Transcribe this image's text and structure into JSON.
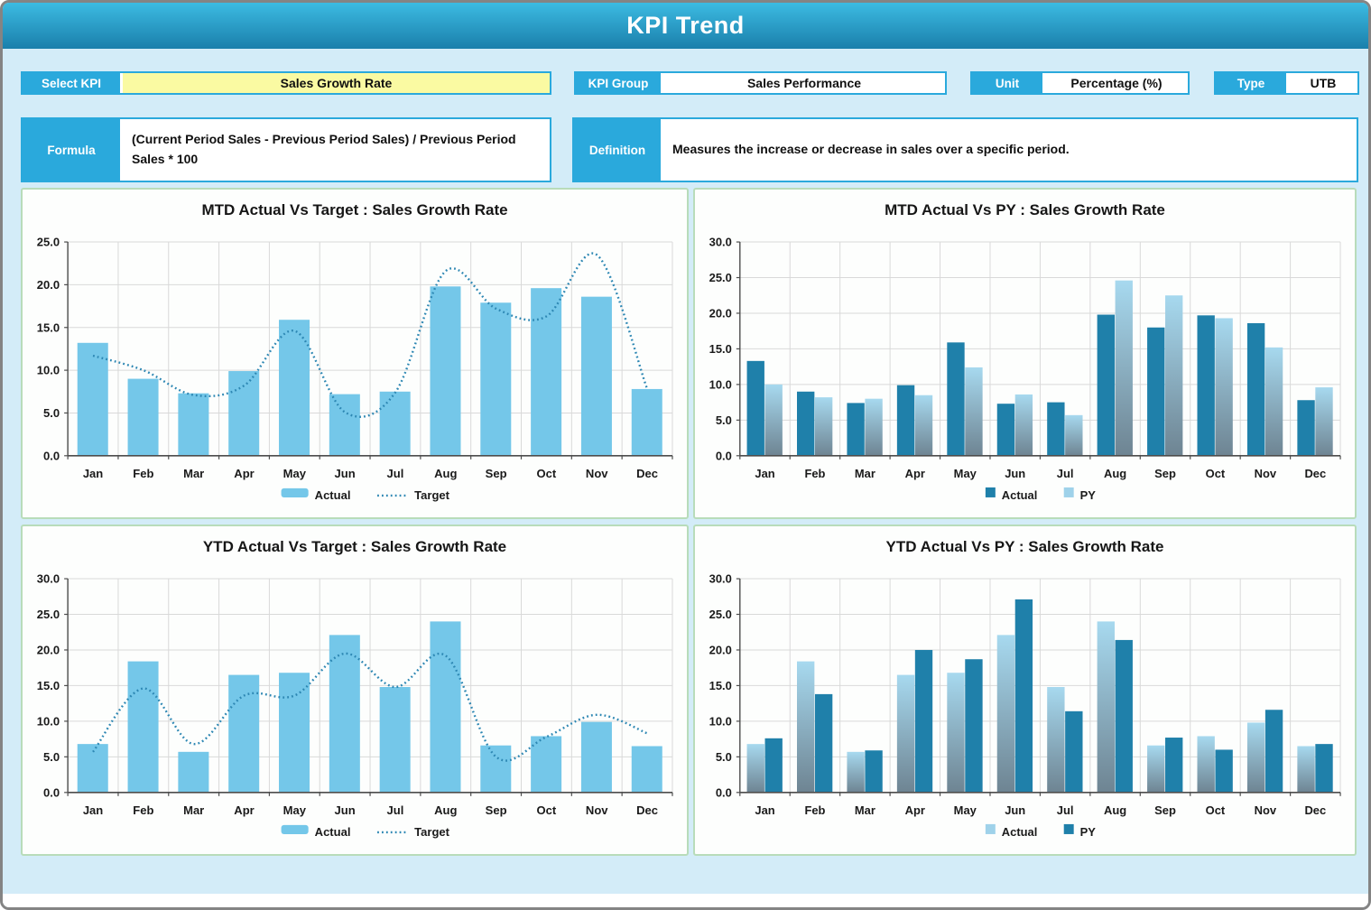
{
  "header": {
    "title": "KPI Trend"
  },
  "fields": {
    "select_kpi": {
      "label": "Select KPI",
      "value": "Sales Growth Rate"
    },
    "kpi_group": {
      "label": "KPI Group",
      "value": "Sales Performance"
    },
    "unit": {
      "label": "Unit",
      "value": "Percentage (%)"
    },
    "type": {
      "label": "Type",
      "value": "UTB"
    },
    "formula": {
      "label": "Formula",
      "value": "(Current Period Sales - Previous Period Sales) / Previous Period Sales * 100"
    },
    "definition": {
      "label": "Definition",
      "value": "Measures the increase or decrease in sales over a specific period."
    }
  },
  "colors": {
    "accent_cyan": "#2aa9dc",
    "header_gradient_top": "#3cbbe2",
    "header_gradient_bottom": "#1a7fab",
    "page_bg": "#d3ecf8",
    "yellow_field": "#fafaa2",
    "panel_border": "#b8dcba",
    "panel_bg": "#fdfefd",
    "bar_light": "#74c7e9",
    "bar_dark": "#1f80aa",
    "gradient_top": "#a7d9ef",
    "gradient_bottom": "#6e8492",
    "legend_light": "#9fd2ea",
    "line_dotted": "#2d87b3",
    "grid": "#d9d9d9",
    "axis": "#4d4d4d",
    "text_dark": "#1a1a1a",
    "border_gray": "#848484"
  },
  "chart_data": [
    {
      "type": "bar",
      "title": "MTD Actual Vs Target : Sales Growth Rate",
      "categories": [
        "Jan",
        "Feb",
        "Mar",
        "Apr",
        "May",
        "Jun",
        "Jul",
        "Aug",
        "Sep",
        "Oct",
        "Nov",
        "Dec"
      ],
      "ylim": [
        0,
        25
      ],
      "ystep": 5,
      "grid": true,
      "legend_position": "bottom",
      "series": [
        {
          "name": "Actual",
          "kind": "bar",
          "style": "light",
          "values": [
            13.2,
            9.0,
            7.3,
            9.9,
            15.9,
            7.2,
            7.5,
            19.8,
            17.9,
            19.6,
            18.6,
            7.8
          ]
        },
        {
          "name": "Target",
          "kind": "line",
          "style": "dotted",
          "values": [
            11.7,
            10.0,
            7.1,
            8.2,
            14.6,
            5.1,
            7.4,
            21.6,
            17.2,
            16.3,
            23.5,
            7.8
          ]
        }
      ]
    },
    {
      "type": "bar",
      "title": "MTD Actual Vs PY : Sales Growth Rate",
      "categories": [
        "Jan",
        "Feb",
        "Mar",
        "Apr",
        "May",
        "Jun",
        "Jul",
        "Aug",
        "Sep",
        "Oct",
        "Nov",
        "Dec"
      ],
      "ylim": [
        0,
        30
      ],
      "ystep": 5,
      "grid": true,
      "legend_position": "bottom",
      "series": [
        {
          "name": "Actual",
          "kind": "bar",
          "style": "dark",
          "values": [
            13.3,
            9.0,
            7.4,
            9.9,
            15.9,
            7.3,
            7.5,
            19.8,
            18.0,
            19.7,
            18.6,
            7.8
          ]
        },
        {
          "name": "PY",
          "kind": "bar",
          "style": "gradient",
          "values": [
            10.0,
            8.2,
            8.0,
            8.5,
            12.4,
            8.6,
            5.7,
            24.6,
            22.5,
            19.3,
            15.2,
            9.6
          ]
        }
      ]
    },
    {
      "type": "bar",
      "title": "YTD Actual Vs Target : Sales Growth Rate",
      "categories": [
        "Jan",
        "Feb",
        "Mar",
        "Apr",
        "May",
        "Jun",
        "Jul",
        "Aug",
        "Sep",
        "Oct",
        "Nov",
        "Dec"
      ],
      "ylim": [
        0,
        30
      ],
      "ystep": 5,
      "grid": true,
      "legend_position": "bottom",
      "series": [
        {
          "name": "Actual",
          "kind": "bar",
          "style": "light",
          "values": [
            6.8,
            18.4,
            5.7,
            16.5,
            16.8,
            22.1,
            14.8,
            24.0,
            6.6,
            7.9,
            9.9,
            6.5
          ]
        },
        {
          "name": "Target",
          "kind": "line",
          "style": "dotted",
          "values": [
            5.7,
            14.6,
            6.8,
            13.6,
            13.6,
            19.5,
            14.8,
            19.2,
            5.0,
            7.8,
            10.9,
            8.3
          ]
        }
      ]
    },
    {
      "type": "bar",
      "title": "YTD Actual Vs PY : Sales Growth Rate",
      "categories": [
        "Jan",
        "Feb",
        "Mar",
        "Apr",
        "May",
        "Jun",
        "Jul",
        "Aug",
        "Sep",
        "Oct",
        "Nov",
        "Dec"
      ],
      "ylim": [
        0,
        30
      ],
      "ystep": 5,
      "grid": true,
      "legend_position": "bottom",
      "series": [
        {
          "name": "Actual",
          "kind": "bar",
          "style": "gradient",
          "values": [
            6.8,
            18.4,
            5.7,
            16.5,
            16.8,
            22.1,
            14.8,
            24.0,
            6.6,
            7.9,
            9.8,
            6.5
          ]
        },
        {
          "name": "PY",
          "kind": "bar",
          "style": "dark",
          "values": [
            7.6,
            13.8,
            5.9,
            20.0,
            18.7,
            27.1,
            11.4,
            21.4,
            7.7,
            6.0,
            11.6,
            6.8
          ]
        }
      ]
    }
  ]
}
